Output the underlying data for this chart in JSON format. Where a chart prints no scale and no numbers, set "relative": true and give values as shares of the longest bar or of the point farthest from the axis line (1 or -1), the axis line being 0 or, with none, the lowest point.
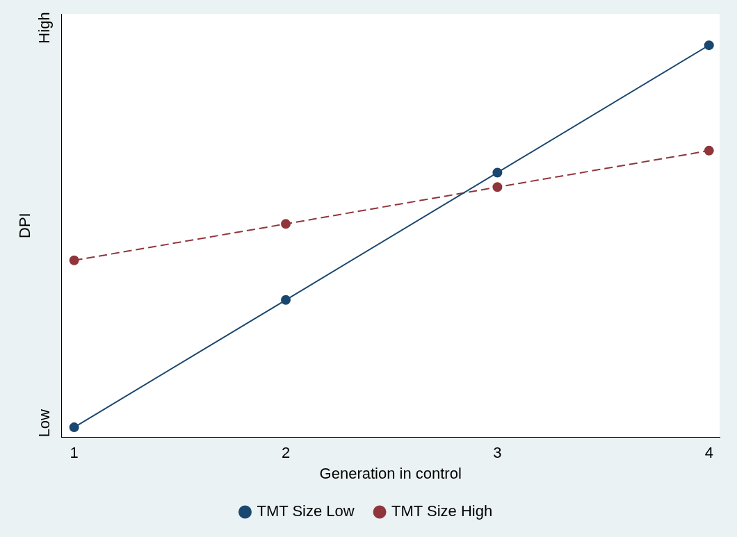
{
  "chart_data": {
    "type": "line",
    "xlabel": "Generation in control",
    "ylabel": "DPI",
    "x": [
      1,
      2,
      3,
      4
    ],
    "xlim": [
      0.94,
      4.05
    ],
    "xticks": [
      1,
      2,
      3,
      4
    ],
    "relative": true,
    "series": [
      {
        "name": "TMT Size Low",
        "color": "#1a476f",
        "values": [
          0.025,
          0.35,
          0.675,
          1
        ],
        "line_style": "solid"
      },
      {
        "name": "TMT Size High",
        "color": "#90353b",
        "values": [
          0.451,
          0.544,
          0.638,
          0.731
        ],
        "line_style": "dashed"
      }
    ],
    "marker": "circle",
    "legend": "bottom",
    "annotations": [
      "Low",
      "High"
    ]
  }
}
